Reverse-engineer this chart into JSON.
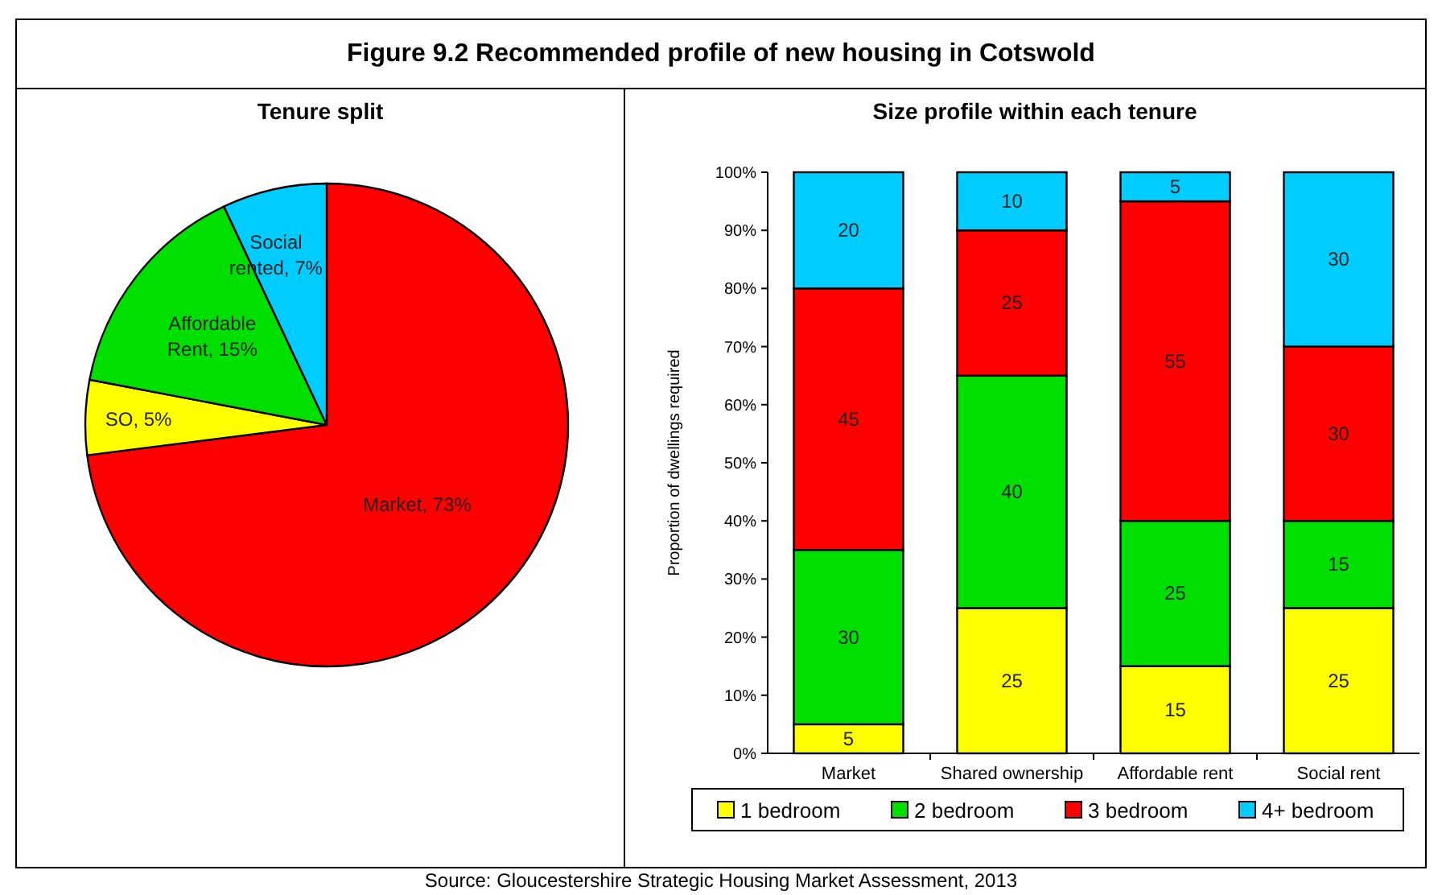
{
  "chart_data": [
    {
      "type": "pie",
      "title": "Figure 9.2 Recommended profile of new housing in Cotswold",
      "subtitle": "Tenure split",
      "categories": [
        "Market",
        "SO",
        "Affordable Rent",
        "Social rented"
      ],
      "values": [
        73,
        5,
        15,
        7
      ],
      "value_labels": [
        "73%",
        "5%",
        "15%",
        "7%"
      ],
      "colors": [
        "#ff0000",
        "#ffff00",
        "#00e000",
        "#00ccff"
      ],
      "legend": false
    },
    {
      "type": "bar",
      "stacked": true,
      "title": "Size profile within each tenure",
      "ylabel": "Proportion of dwellings required",
      "categories": [
        "Market",
        "Shared ownership",
        "Affordable rent",
        "Social rent"
      ],
      "series": [
        {
          "name": "1 bedroom",
          "color": "#ffff00",
          "values": [
            5,
            25,
            15,
            25
          ]
        },
        {
          "name": "2 bedroom",
          "color": "#00e000",
          "values": [
            30,
            40,
            25,
            15
          ]
        },
        {
          "name": "3 bedroom",
          "color": "#ff0000",
          "values": [
            45,
            25,
            55,
            30
          ]
        },
        {
          "name": "4+ bedroom",
          "color": "#00ccff",
          "values": [
            20,
            10,
            5,
            30
          ]
        }
      ],
      "ylim": [
        0,
        100
      ],
      "yticks": [
        {
          "value": 0,
          "label": "0%"
        },
        {
          "value": 10,
          "label": "10%"
        },
        {
          "value": 20,
          "label": "20%"
        },
        {
          "value": 30,
          "label": "30%"
        },
        {
          "value": 40,
          "label": "40%"
        },
        {
          "value": 50,
          "label": "50%"
        },
        {
          "value": 60,
          "label": "60%"
        },
        {
          "value": 70,
          "label": "70%"
        },
        {
          "value": 80,
          "label": "80%"
        },
        {
          "value": 90,
          "label": "90%"
        },
        {
          "value": 100,
          "label": "100%"
        }
      ],
      "data_labels": true,
      "legend": "bottom",
      "grid": false,
      "annotations": [
        "Source: Gloucestershire Strategic Housing Market Assessment, 2013"
      ]
    }
  ]
}
